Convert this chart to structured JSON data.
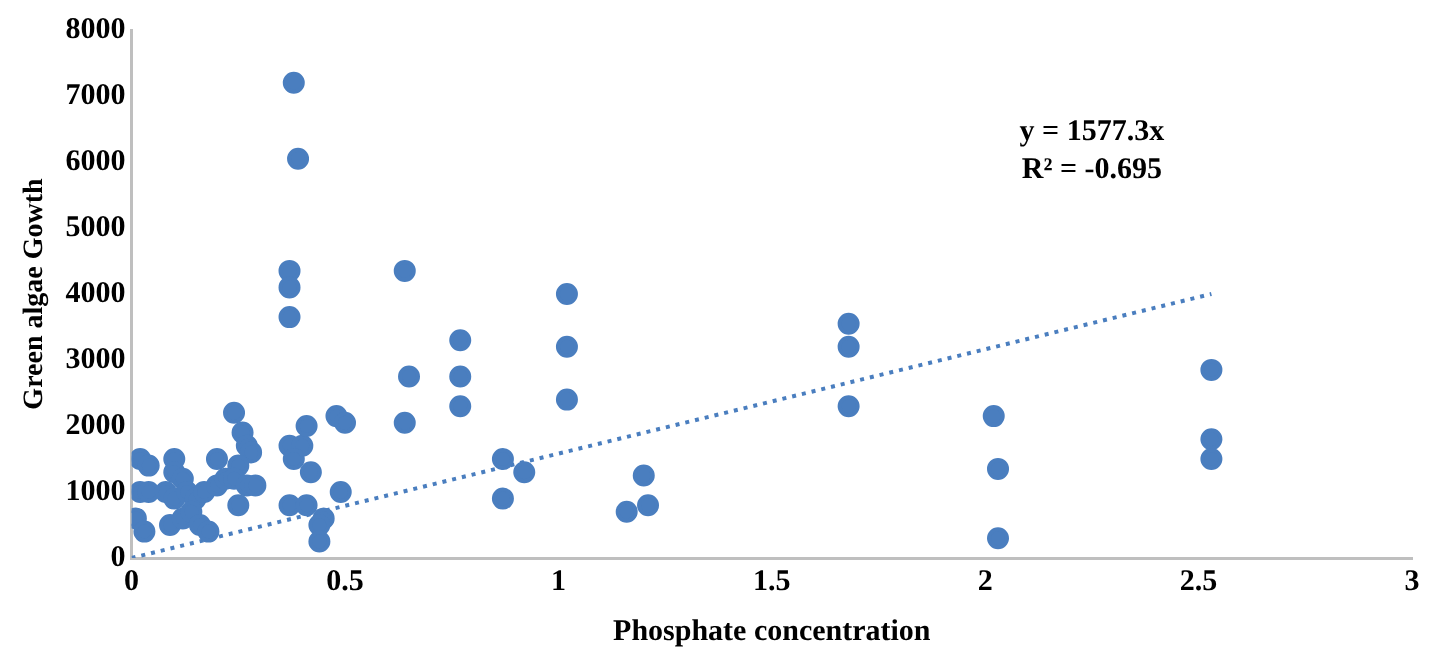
{
  "chart_data": {
    "type": "scatter",
    "xlabel": "Phosphate concentration",
    "ylabel": "Green algae Gowth",
    "xlim": [
      0,
      3
    ],
    "xticks": [
      0,
      0.5,
      1,
      1.5,
      2,
      2.5,
      3
    ],
    "ylim": [
      0,
      8000
    ],
    "yticks": [
      0,
      1000,
      2000,
      3000,
      4000,
      5000,
      6000,
      7000,
      8000
    ],
    "grid": false,
    "legend": false,
    "annotations": [
      "y = 1577.3x",
      "R² = -0.695"
    ],
    "series": [
      {
        "type": "scatter",
        "color": "#4a7ebf",
        "marker": "circle",
        "x": [
          0.02,
          0.04,
          0.02,
          0.04,
          0.01,
          0.03,
          0.1,
          0.1,
          0.12,
          0.08,
          0.1,
          0.13,
          0.15,
          0.09,
          0.12,
          0.14,
          0.16,
          0.18,
          0.17,
          0.2,
          0.2,
          0.22,
          0.24,
          0.26,
          0.27,
          0.28,
          0.25,
          0.24,
          0.27,
          0.29,
          0.25,
          0.38,
          0.39,
          0.37,
          0.37,
          0.37,
          0.37,
          0.4,
          0.38,
          0.41,
          0.42,
          0.37,
          0.41,
          0.45,
          0.44,
          0.44,
          0.48,
          0.5,
          0.49,
          0.64,
          0.65,
          0.64,
          0.77,
          0.77,
          0.77,
          0.87,
          0.87,
          0.92,
          1.02,
          1.02,
          1.02,
          1.16,
          1.2,
          1.21,
          1.68,
          1.68,
          1.68,
          2.02,
          2.03,
          2.03,
          2.53,
          2.53,
          2.53
        ],
        "values": [
          1500,
          1400,
          1000,
          1000,
          600,
          400,
          1500,
          1300,
          1200,
          1000,
          900,
          1000,
          900,
          500,
          600,
          700,
          500,
          400,
          1000,
          1100,
          1500,
          1200,
          2200,
          1900,
          1700,
          1600,
          1400,
          1200,
          1100,
          1100,
          800,
          7200,
          6050,
          4350,
          4100,
          3650,
          1700,
          1700,
          1500,
          2000,
          1300,
          800,
          800,
          600,
          500,
          250,
          2150,
          2050,
          1000,
          4350,
          2750,
          2050,
          3300,
          2750,
          2300,
          1500,
          900,
          1300,
          4000,
          3200,
          2400,
          700,
          1250,
          800,
          3550,
          3200,
          2300,
          2150,
          1350,
          300,
          2850,
          1800,
          1500
        ]
      },
      {
        "type": "line",
        "color": "#4a7ebf",
        "marker": "none",
        "line_style": "dotted",
        "x": [
          0,
          2.53
        ],
        "values": [
          0,
          4000
        ]
      }
    ]
  }
}
